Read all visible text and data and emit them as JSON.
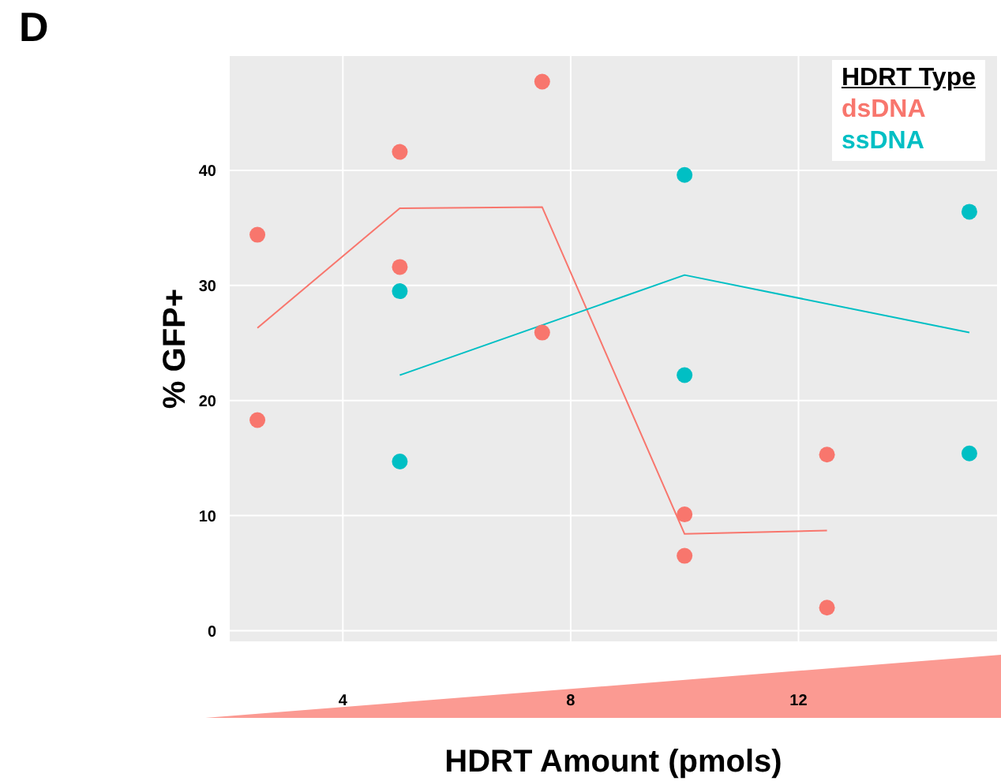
{
  "chart_data": {
    "type": "scatter",
    "title": "D",
    "xlabel": "HDRT Amount (pmols)",
    "ylabel": "% GFP+",
    "legend_title": "HDRT Type",
    "xlim": [
      2,
      15.5
    ],
    "xticks": [
      4,
      8,
      12
    ],
    "ylim": [
      -1,
      50
    ],
    "yticks": [
      0,
      10,
      20,
      30,
      40
    ],
    "grid": true,
    "legend": "top right",
    "marker": "circle",
    "series": [
      {
        "name": "dsDNA",
        "color": "#f8766d",
        "x": [
          2.5,
          2.5,
          5,
          5,
          7.5,
          7.5,
          10,
          10,
          12.5,
          12.5
        ],
        "values": [
          34.4,
          18.3,
          41.6,
          31.6,
          47.7,
          25.9,
          10.1,
          6.5,
          15.3,
          2.0
        ]
      },
      {
        "name": "ssDNA",
        "color": "#00bfc4",
        "x": [
          5,
          5,
          10,
          10,
          15,
          15
        ],
        "values": [
          29.5,
          14.7,
          39.6,
          22.2,
          36.4,
          15.4
        ]
      },
      {
        "type": "line",
        "marker": "none",
        "color": "#f8766d",
        "x": [
          2.5,
          5,
          7.5,
          10,
          12.5
        ],
        "values": [
          26.3,
          36.7,
          36.8,
          8.4,
          8.7
        ]
      },
      {
        "type": "line",
        "marker": "none",
        "color": "#00bfc4",
        "x": [
          5,
          10,
          15
        ],
        "values": [
          22.2,
          30.9,
          25.9
        ]
      }
    ]
  }
}
